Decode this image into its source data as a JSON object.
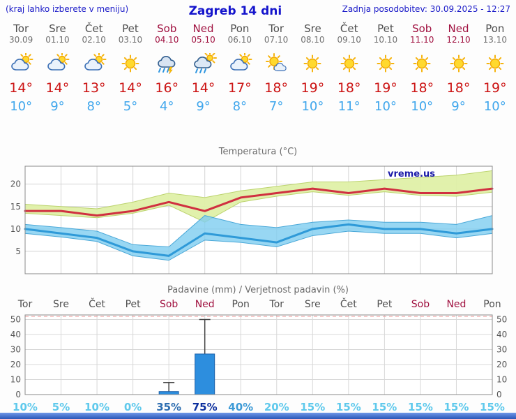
{
  "header": {
    "hint": "(kraj lahko izberete v meniju)",
    "title": "Zagreb 14 dni",
    "updated": "Zadnja posodobitev: 30.09.2025 - 12:27"
  },
  "colors": {
    "accent_blue": "#1414cc",
    "weekend_red": "#a0103f",
    "tmax_red": "#cc1414",
    "tmin_blue": "#3fa6ec",
    "bar_blue": "#2d8ede"
  },
  "days": [
    {
      "name": "Tor",
      "date": "30.09",
      "weekend": false,
      "icon": "cloud-sun",
      "tmax": "14°",
      "tmin": "10°",
      "precip_prob": "10%",
      "prob_color": "#5fc9ec"
    },
    {
      "name": "Sre",
      "date": "01.10",
      "weekend": false,
      "icon": "cloud-sun",
      "tmax": "14°",
      "tmin": "9°",
      "precip_prob": "5%",
      "prob_color": "#5fc9ec"
    },
    {
      "name": "Čet",
      "date": "02.10",
      "weekend": false,
      "icon": "cloud-sun",
      "tmax": "13°",
      "tmin": "8°",
      "precip_prob": "10%",
      "prob_color": "#5fc9ec"
    },
    {
      "name": "Pet",
      "date": "03.10",
      "weekend": false,
      "icon": "sun",
      "tmax": "14°",
      "tmin": "5°",
      "precip_prob": "0%",
      "prob_color": "#5fc9ec"
    },
    {
      "name": "Sob",
      "date": "04.10",
      "weekend": true,
      "icon": "storm",
      "tmax": "16°",
      "tmin": "4°",
      "precip_prob": "35%",
      "prob_color": "#2d6db0"
    },
    {
      "name": "Ned",
      "date": "05.10",
      "weekend": true,
      "icon": "rain-sun",
      "tmax": "14°",
      "tmin": "9°",
      "precip_prob": "75%",
      "prob_color": "#0c2f9e"
    },
    {
      "name": "Pon",
      "date": "06.10",
      "weekend": false,
      "icon": "cloud-sun",
      "tmax": "17°",
      "tmin": "8°",
      "precip_prob": "40%",
      "prob_color": "#3d9ad6"
    },
    {
      "name": "Tor",
      "date": "07.10",
      "weekend": false,
      "icon": "sun-cloud",
      "tmax": "18°",
      "tmin": "7°",
      "precip_prob": "20%",
      "prob_color": "#5fc9ec"
    },
    {
      "name": "Sre",
      "date": "08.10",
      "weekend": false,
      "icon": "sun",
      "tmax": "19°",
      "tmin": "10°",
      "precip_prob": "15%",
      "prob_color": "#5fc9ec"
    },
    {
      "name": "Čet",
      "date": "09.10",
      "weekend": false,
      "icon": "sun",
      "tmax": "18°",
      "tmin": "11°",
      "precip_prob": "15%",
      "prob_color": "#5fc9ec"
    },
    {
      "name": "Pet",
      "date": "10.10",
      "weekend": false,
      "icon": "sun",
      "tmax": "19°",
      "tmin": "10°",
      "precip_prob": "15%",
      "prob_color": "#5fc9ec"
    },
    {
      "name": "Sob",
      "date": "11.10",
      "weekend": true,
      "icon": "sun",
      "tmax": "18°",
      "tmin": "10°",
      "precip_prob": "15%",
      "prob_color": "#5fc9ec"
    },
    {
      "name": "Ned",
      "date": "12.10",
      "weekend": true,
      "icon": "sun",
      "tmax": "18°",
      "tmin": "9°",
      "precip_prob": "15%",
      "prob_color": "#5fc9ec"
    },
    {
      "name": "Pon",
      "date": "13.10",
      "weekend": false,
      "icon": "sun",
      "tmax": "19°",
      "tmin": "10°",
      "precip_prob": "15%",
      "prob_color": "#5fc9ec"
    }
  ],
  "chart_data": [
    {
      "type": "line",
      "title": "Temperatura (°C)",
      "watermark": "vreme.us",
      "x_days": [
        "Tor",
        "Sre",
        "Čet",
        "Pet",
        "Sob",
        "Ned",
        "Pon",
        "Tor",
        "Sre",
        "Čet",
        "Pet",
        "Sob",
        "Ned",
        "Pon"
      ],
      "ylim": [
        0,
        24
      ],
      "yticks": [
        5,
        10,
        15,
        20
      ],
      "series": [
        {
          "name": "tmax",
          "label": "Max temperatura",
          "color": "#d03040",
          "values": [
            14,
            14,
            13,
            14,
            16,
            14,
            17,
            18,
            19,
            18,
            19,
            18,
            18,
            19
          ]
        },
        {
          "name": "tmax_upper",
          "label": "Max band zgornja meja",
          "color": "#dff0a8",
          "values": [
            15.5,
            15,
            14.5,
            16,
            18,
            17,
            18.5,
            19.5,
            20.5,
            20.5,
            21,
            21.5,
            22,
            23
          ]
        },
        {
          "name": "tmax_lower",
          "label": "Max band spodnja meja",
          "color": "#dff0a8",
          "values": [
            13.5,
            13,
            12.5,
            13.5,
            15.3,
            11.5,
            16,
            17.3,
            18.3,
            17.5,
            18.3,
            17.5,
            17.3,
            18.2
          ]
        },
        {
          "name": "tmin",
          "label": "Min temperatura",
          "color": "#2f9ad8",
          "values": [
            10,
            9,
            8,
            5,
            4,
            9,
            8,
            7,
            10,
            11,
            10,
            10,
            9,
            10
          ]
        },
        {
          "name": "tmin_upper",
          "label": "Min band zgornja meja",
          "color": "#7ecdf0",
          "values": [
            11,
            10.3,
            9.5,
            6.5,
            6,
            13,
            11,
            10.3,
            11.5,
            12,
            11.5,
            11.5,
            11,
            13
          ]
        },
        {
          "name": "tmin_lower",
          "label": "Min band spodnja meja",
          "color": "#7ecdf0",
          "values": [
            9,
            8.2,
            7.2,
            4,
            3,
            7.5,
            7,
            6,
            8.5,
            9.5,
            9,
            9,
            8,
            9
          ]
        }
      ]
    },
    {
      "type": "bar",
      "title": "Padavine (mm) / Verjetnost padavin (%)",
      "categories": [
        "Tor",
        "Sre",
        "Čet",
        "Pet",
        "Sob",
        "Ned",
        "Pon",
        "Tor",
        "Sre",
        "Čet",
        "Pet",
        "Sob",
        "Ned",
        "Pon"
      ],
      "values": [
        0,
        0,
        0,
        0,
        2,
        27,
        0,
        0,
        0,
        0,
        0,
        0,
        0,
        0
      ],
      "whisker_max": [
        0,
        0,
        0,
        0,
        8,
        50,
        0,
        0,
        0,
        0,
        0,
        0,
        0,
        0
      ],
      "probabilities": [
        "10%",
        "5%",
        "10%",
        "0%",
        "35%",
        "75%",
        "40%",
        "20%",
        "15%",
        "15%",
        "15%",
        "15%",
        "15%",
        "15%"
      ],
      "ylim": [
        0,
        53
      ],
      "yticks": [
        0,
        10,
        20,
        30,
        40,
        50
      ],
      "bar_color": "#2d8ede"
    }
  ]
}
